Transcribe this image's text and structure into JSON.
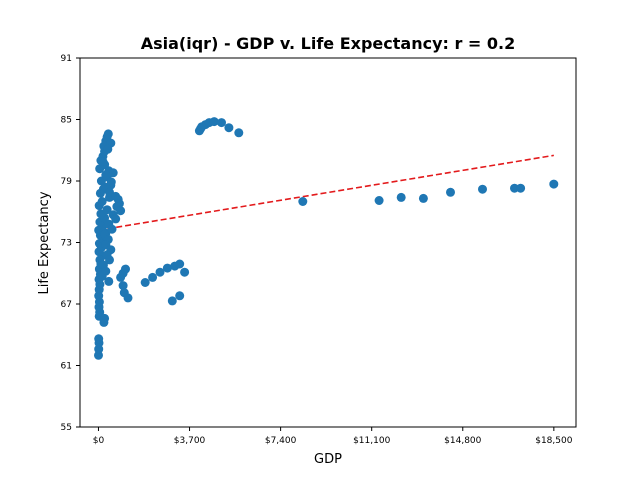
{
  "chart_data": {
    "type": "scatter",
    "title": "Asia(iqr) - GDP v. Life Expectancy: r = 0.2",
    "xlabel": "GDP",
    "ylabel": "Life Expectancy",
    "xlim": [
      -750,
      19400
    ],
    "ylim": [
      55,
      91
    ],
    "x_ticks": [
      0,
      3700,
      7400,
      11100,
      14800,
      18500
    ],
    "x_tick_labels": [
      "$0",
      "$3,700",
      "$7,400",
      "$11,100",
      "$14,800",
      "$18,500"
    ],
    "y_ticks": [
      55,
      61,
      67,
      73,
      79,
      85,
      91
    ],
    "y_tick_labels": [
      "55",
      "61",
      "67",
      "73",
      "79",
      "85",
      "91"
    ],
    "grid": false,
    "series": [
      {
        "color": "#1f77b4",
        "points": [
          [
            0,
            62.0
          ],
          [
            10,
            62.6
          ],
          [
            20,
            63.2
          ],
          [
            10,
            63.6
          ],
          [
            30,
            65.8
          ],
          [
            50,
            66.2
          ],
          [
            20,
            66.7
          ],
          [
            40,
            67.2
          ],
          [
            10,
            67.8
          ],
          [
            30,
            68.4
          ],
          [
            60,
            68.9
          ],
          [
            20,
            69.4
          ],
          [
            80,
            69.9
          ],
          [
            40,
            70.4
          ],
          [
            100,
            70.9
          ],
          [
            60,
            71.3
          ],
          [
            150,
            71.7
          ],
          [
            20,
            72.1
          ],
          [
            120,
            72.5
          ],
          [
            40,
            72.9
          ],
          [
            200,
            73.3
          ],
          [
            80,
            73.7
          ],
          [
            300,
            73.9
          ],
          [
            10,
            74.2
          ],
          [
            180,
            74.6
          ],
          [
            60,
            75.0
          ],
          [
            250,
            75.4
          ],
          [
            100,
            75.8
          ],
          [
            350,
            76.2
          ],
          [
            30,
            76.6
          ],
          [
            150,
            77.0
          ],
          [
            450,
            77.4
          ],
          [
            80,
            77.8
          ],
          [
            200,
            78.2
          ],
          [
            500,
            78.6
          ],
          [
            120,
            79.0
          ],
          [
            350,
            79.4
          ],
          [
            600,
            79.8
          ],
          [
            50,
            80.2
          ],
          [
            250,
            80.6
          ],
          [
            100,
            81.0
          ],
          [
            180,
            81.4
          ],
          [
            250,
            81.9
          ],
          [
            220,
            82.4
          ],
          [
            300,
            82.9
          ],
          [
            350,
            83.3
          ],
          [
            400,
            83.6
          ],
          [
            500,
            82.7
          ],
          [
            380,
            82.1
          ],
          [
            180,
            80.9
          ],
          [
            420,
            80.0
          ],
          [
            300,
            79.6
          ],
          [
            520,
            78.9
          ],
          [
            280,
            78.4
          ],
          [
            450,
            77.9
          ],
          [
            700,
            77.5
          ],
          [
            800,
            77.2
          ],
          [
            850,
            76.8
          ],
          [
            750,
            76.5
          ],
          [
            900,
            76.1
          ],
          [
            600,
            75.7
          ],
          [
            700,
            75.3
          ],
          [
            420,
            74.8
          ],
          [
            550,
            74.3
          ],
          [
            250,
            73.8
          ],
          [
            400,
            73.3
          ],
          [
            300,
            72.8
          ],
          [
            500,
            72.3
          ],
          [
            350,
            71.8
          ],
          [
            450,
            71.3
          ],
          [
            200,
            70.8
          ],
          [
            300,
            70.2
          ],
          [
            150,
            69.7
          ],
          [
            420,
            69.2
          ],
          [
            250,
            65.6
          ],
          [
            220,
            65.2
          ],
          [
            900,
            69.6
          ],
          [
            1000,
            70.0
          ],
          [
            1100,
            70.4
          ],
          [
            1000,
            68.8
          ],
          [
            1050,
            68.1
          ],
          [
            1200,
            67.6
          ],
          [
            1900,
            69.1
          ],
          [
            2200,
            69.6
          ],
          [
            2500,
            70.1
          ],
          [
            2800,
            70.5
          ],
          [
            3100,
            70.7
          ],
          [
            3300,
            70.9
          ],
          [
            3500,
            70.1
          ],
          [
            3000,
            67.3
          ],
          [
            3300,
            67.8
          ],
          [
            4100,
            83.9
          ],
          [
            4200,
            84.3
          ],
          [
            4350,
            84.5
          ],
          [
            4500,
            84.7
          ],
          [
            4700,
            84.8
          ],
          [
            5000,
            84.7
          ],
          [
            5300,
            84.2
          ],
          [
            5700,
            83.7
          ],
          [
            4150,
            84.1
          ],
          [
            8300,
            77.0
          ],
          [
            11400,
            77.1
          ],
          [
            12300,
            77.4
          ],
          [
            13200,
            77.3
          ],
          [
            14300,
            77.9
          ],
          [
            15600,
            78.2
          ],
          [
            16900,
            78.3
          ],
          [
            17150,
            78.3
          ],
          [
            18500,
            78.7
          ]
        ]
      }
    ],
    "trendline": {
      "style": "dashed",
      "color": "#e31a1c",
      "x": [
        0,
        18500
      ],
      "y": [
        74.2,
        81.5
      ]
    }
  }
}
